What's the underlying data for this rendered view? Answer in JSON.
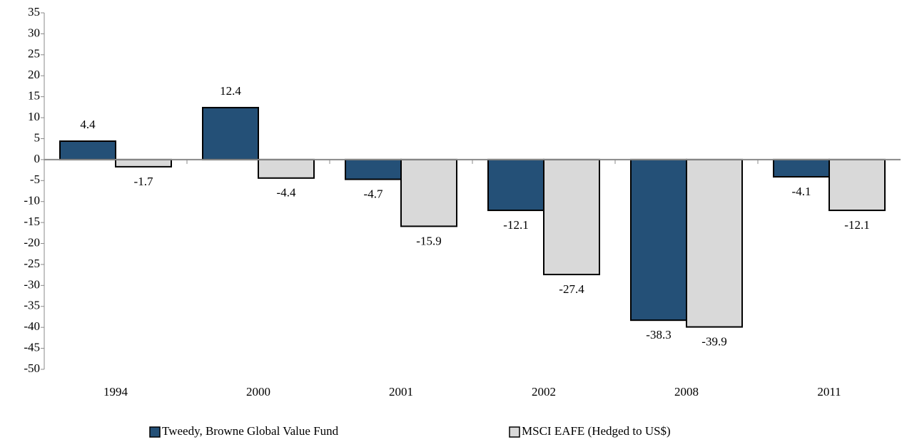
{
  "chart_data": {
    "type": "bar",
    "categories": [
      "1994",
      "2000",
      "2001",
      "2002",
      "2008",
      "2011"
    ],
    "series": [
      {
        "name": "Tweedy, Browne Global Value Fund",
        "color": "#245077",
        "values": [
          4.4,
          12.4,
          -4.7,
          -12.1,
          -38.3,
          -4.1
        ]
      },
      {
        "name": "MSCI EAFE (Hedged to US$)",
        "color": "#d9d9d9",
        "values": [
          -1.7,
          -4.4,
          -15.9,
          -27.4,
          -39.9,
          -12.1
        ]
      }
    ],
    "ylim": [
      -50,
      35
    ],
    "yticks": [
      -50,
      -45,
      -40,
      -35,
      -30,
      -25,
      -20,
      -15,
      -10,
      -5,
      0,
      5,
      10,
      15,
      20,
      25,
      30,
      35
    ],
    "legend": "bottom"
  }
}
